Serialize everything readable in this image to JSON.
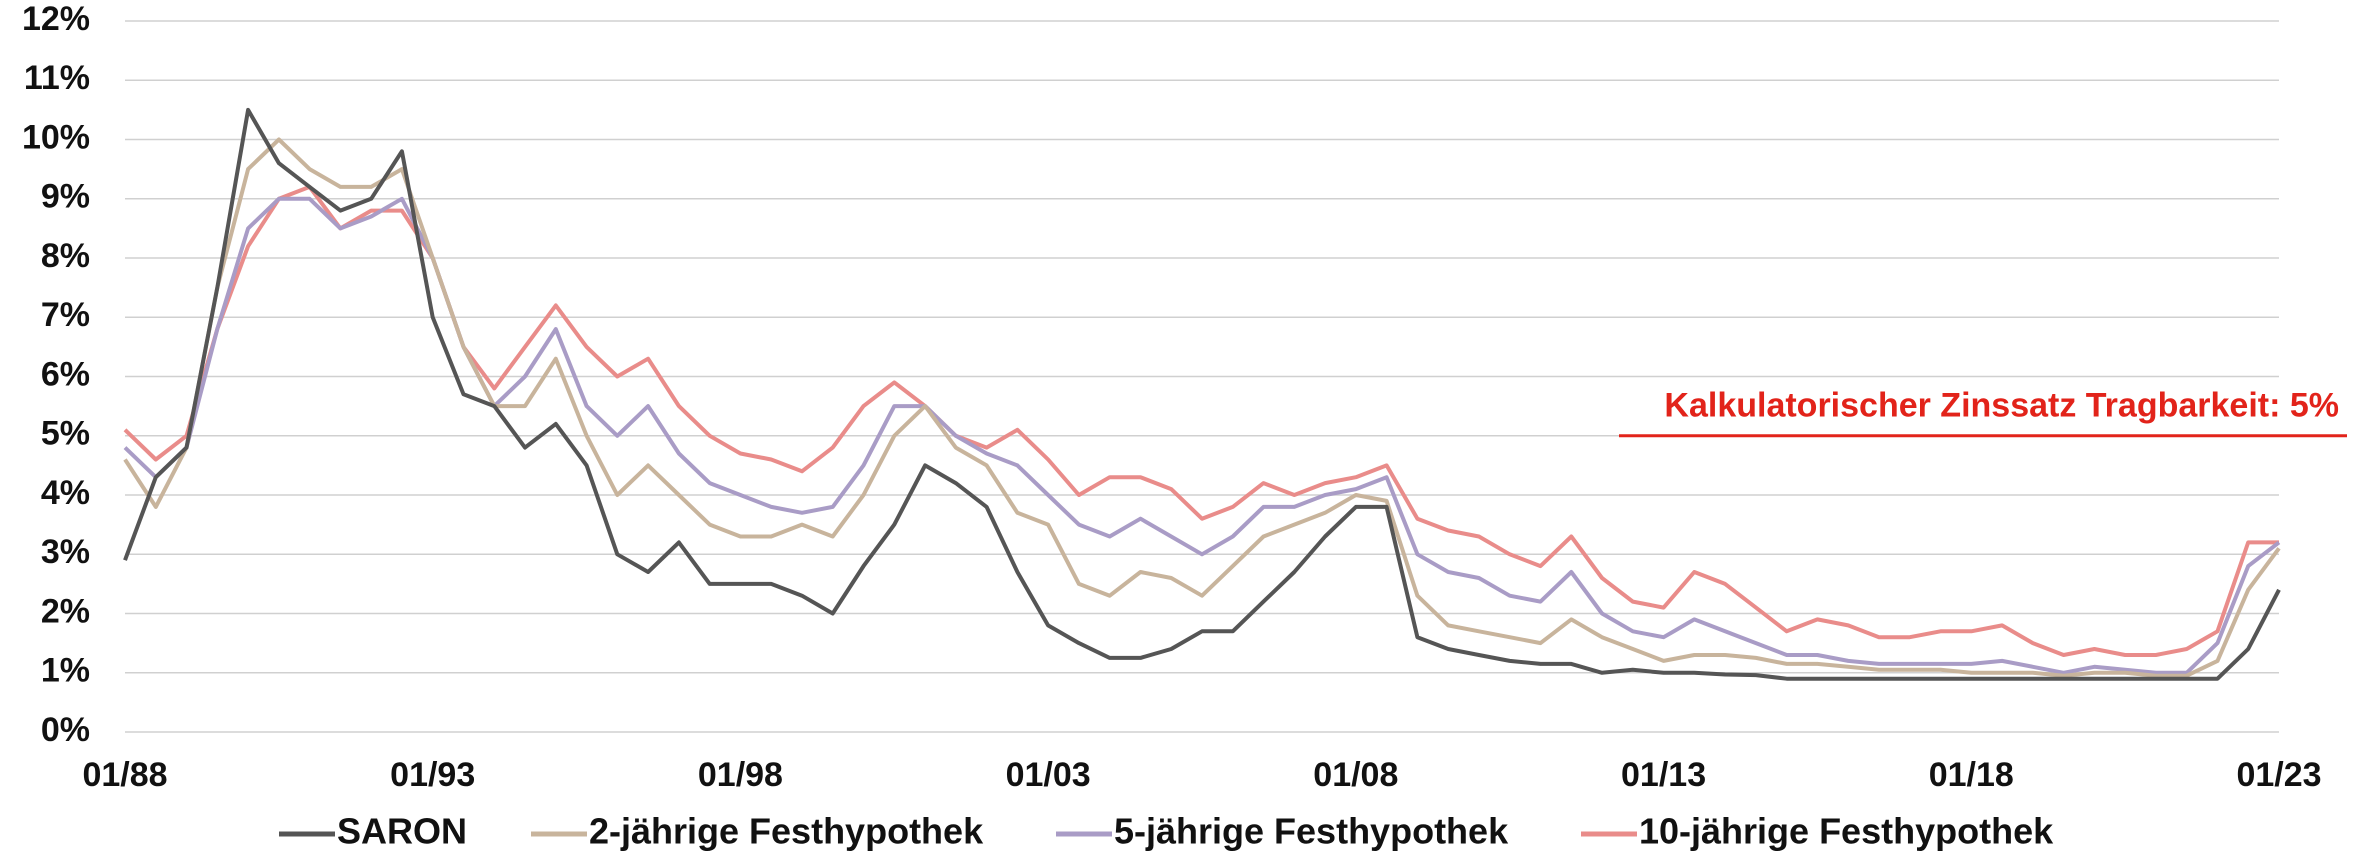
{
  "chart_data": {
    "type": "line",
    "x": [
      1988,
      1988.5,
      1989,
      1989.5,
      1990,
      1990.5,
      1991,
      1991.5,
      1992,
      1992.5,
      1993,
      1993.5,
      1994,
      1994.5,
      1995,
      1995.5,
      1996,
      1996.5,
      1997,
      1997.5,
      1998,
      1998.5,
      1999,
      1999.5,
      2000,
      2000.5,
      2001,
      2001.5,
      2002,
      2002.5,
      2003,
      2003.5,
      2004,
      2004.5,
      2005,
      2005.5,
      2006,
      2006.5,
      2007,
      2007.5,
      2008,
      2008.5,
      2009,
      2009.5,
      2010,
      2010.5,
      2011,
      2011.5,
      2012,
      2012.5,
      2013,
      2013.5,
      2014,
      2014.5,
      2015,
      2015.5,
      2016,
      2016.5,
      2017,
      2017.5,
      2018,
      2018.5,
      2019,
      2019.5,
      2020,
      2020.5,
      2021,
      2021.5,
      2022,
      2022.5,
      2023
    ],
    "series": [
      {
        "name": "SARON",
        "color": "#555555",
        "values": [
          2.9,
          4.3,
          4.8,
          7.5,
          10.5,
          9.6,
          9.2,
          8.8,
          9.0,
          9.8,
          7.0,
          5.7,
          5.5,
          4.8,
          5.2,
          4.5,
          3.0,
          2.7,
          3.2,
          2.5,
          2.5,
          2.5,
          2.3,
          2.0,
          2.8,
          3.5,
          4.5,
          4.2,
          3.8,
          2.7,
          1.8,
          1.5,
          1.25,
          1.25,
          1.4,
          1.7,
          1.7,
          2.2,
          2.7,
          3.3,
          3.8,
          3.8,
          1.6,
          1.4,
          1.3,
          1.2,
          1.15,
          1.15,
          1.0,
          1.05,
          1.0,
          1.0,
          0.97,
          0.96,
          0.9,
          0.9,
          0.9,
          0.9,
          0.9,
          0.9,
          0.9,
          0.9,
          0.9,
          0.9,
          0.9,
          0.9,
          0.9,
          0.9,
          0.9,
          1.4,
          2.4
        ]
      },
      {
        "name": "2-jährige Festhypothek",
        "color": "#c8b49c",
        "values": [
          4.6,
          3.8,
          4.8,
          7.5,
          9.5,
          10.0,
          9.5,
          9.2,
          9.2,
          9.5,
          8.0,
          6.5,
          5.5,
          5.5,
          6.3,
          5.0,
          4.0,
          4.5,
          4.0,
          3.5,
          3.3,
          3.3,
          3.5,
          3.3,
          4.0,
          5.0,
          5.5,
          4.8,
          4.5,
          3.7,
          3.5,
          2.5,
          2.3,
          2.7,
          2.6,
          2.3,
          2.8,
          3.3,
          3.5,
          3.7,
          4.0,
          3.9,
          2.3,
          1.8,
          1.7,
          1.6,
          1.5,
          1.9,
          1.6,
          1.4,
          1.2,
          1.3,
          1.3,
          1.25,
          1.15,
          1.15,
          1.1,
          1.05,
          1.05,
          1.05,
          1.0,
          1.0,
          1.0,
          0.95,
          1.0,
          1.0,
          0.95,
          0.95,
          1.2,
          2.4,
          3.1
        ]
      },
      {
        "name": "5-jährige Festhypothek",
        "color": "#a99cc6",
        "values": [
          4.8,
          4.3,
          4.8,
          6.8,
          8.5,
          9.0,
          9.0,
          8.5,
          8.7,
          9.0,
          8.0,
          6.5,
          5.5,
          6.0,
          6.8,
          5.5,
          5.0,
          5.5,
          4.7,
          4.2,
          4.0,
          3.8,
          3.7,
          3.8,
          4.5,
          5.5,
          5.5,
          5.0,
          4.7,
          4.5,
          4.0,
          3.5,
          3.3,
          3.6,
          3.3,
          3.0,
          3.3,
          3.8,
          3.8,
          4.0,
          4.1,
          4.3,
          3.0,
          2.7,
          2.6,
          2.3,
          2.2,
          2.7,
          2.0,
          1.7,
          1.6,
          1.9,
          1.7,
          1.5,
          1.3,
          1.3,
          1.2,
          1.15,
          1.15,
          1.15,
          1.15,
          1.2,
          1.1,
          1.0,
          1.1,
          1.05,
          1.0,
          1.0,
          1.5,
          2.8,
          3.2
        ]
      },
      {
        "name": "10-jährige Festhypothek",
        "color": "#e98c8a",
        "values": [
          5.1,
          4.6,
          5.0,
          6.8,
          8.2,
          9.0,
          9.2,
          8.5,
          8.8,
          8.8,
          8.0,
          6.5,
          5.8,
          6.5,
          7.2,
          6.5,
          6.0,
          6.3,
          5.5,
          5.0,
          4.7,
          4.6,
          4.4,
          4.8,
          5.5,
          5.9,
          5.5,
          5.0,
          4.8,
          5.1,
          4.6,
          4.0,
          4.3,
          4.3,
          4.1,
          3.6,
          3.8,
          4.2,
          4.0,
          4.2,
          4.3,
          4.5,
          3.6,
          3.4,
          3.3,
          3.0,
          2.8,
          3.3,
          2.6,
          2.2,
          2.1,
          2.7,
          2.5,
          2.1,
          1.7,
          1.9,
          1.8,
          1.6,
          1.6,
          1.7,
          1.7,
          1.8,
          1.5,
          1.3,
          1.4,
          1.3,
          1.3,
          1.4,
          1.7,
          3.2,
          3.2
        ]
      }
    ],
    "xlim": [
      1988,
      2023
    ],
    "xticks": [
      {
        "value": 1988,
        "label": "01/88"
      },
      {
        "value": 1993,
        "label": "01/93"
      },
      {
        "value": 1998,
        "label": "01/98"
      },
      {
        "value": 2003,
        "label": "01/03"
      },
      {
        "value": 2008,
        "label": "01/08"
      },
      {
        "value": 2013,
        "label": "01/13"
      },
      {
        "value": 2018,
        "label": "01/18"
      },
      {
        "value": 2023,
        "label": "01/23"
      }
    ],
    "ylim": [
      0,
      12
    ],
    "yticks": [
      {
        "value": 0,
        "label": "0%"
      },
      {
        "value": 1,
        "label": "1%"
      },
      {
        "value": 2,
        "label": "2%"
      },
      {
        "value": 3,
        "label": "3%"
      },
      {
        "value": 4,
        "label": "4%"
      },
      {
        "value": 5,
        "label": "5%"
      },
      {
        "value": 6,
        "label": "6%"
      },
      {
        "value": 7,
        "label": "7%"
      },
      {
        "value": 8,
        "label": "8%"
      },
      {
        "value": 9,
        "label": "9%"
      },
      {
        "value": 10,
        "label": "10%"
      },
      {
        "value": 11,
        "label": "11%"
      },
      {
        "value": 12,
        "label": "12%"
      }
    ],
    "grid": true,
    "legend": "bottom",
    "annotation": {
      "text": "Kalkulatorischer Zinssatz Tragbarkeit: 5%",
      "value": 5,
      "color": "#e2231a"
    }
  }
}
